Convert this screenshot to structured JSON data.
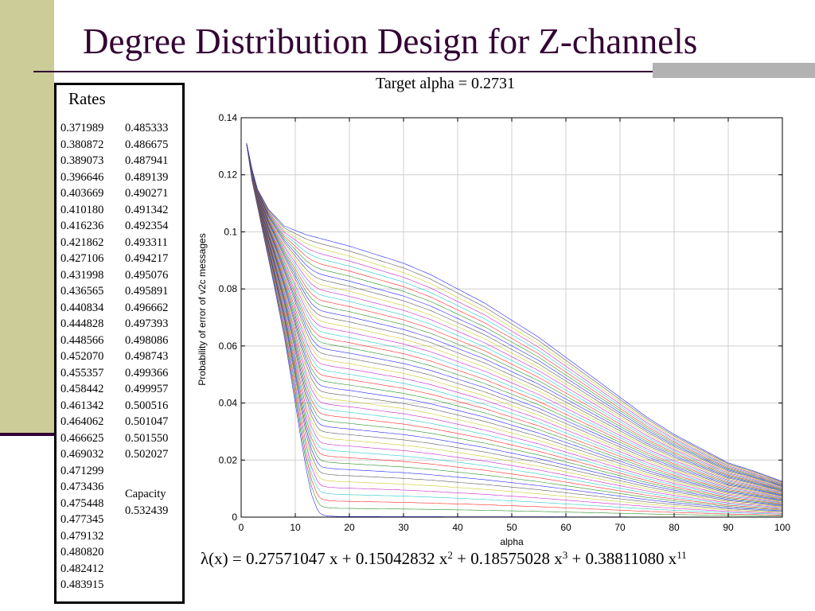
{
  "slide": {
    "title": "Degree Distribution Design for Z-channels",
    "formula": {
      "lhs": "λ(x) = ",
      "terms": [
        {
          "coef": "0.27571047",
          "var": " x",
          "exp": "",
          "op": " +  "
        },
        {
          "coef": "0.15042832",
          "var": " x",
          "exp": "2",
          "op": " +  "
        },
        {
          "coef": "0.18575028",
          "var": " x",
          "exp": "3",
          "op": " + "
        },
        {
          "coef": "0.38811080",
          "var": " x",
          "exp": "11",
          "op": ""
        }
      ]
    }
  },
  "rates": {
    "title": "Rates",
    "col1": [
      "0.371989",
      "0.380872",
      "0.389073",
      "0.396646",
      "0.403669",
      "0.410180",
      "0.416236",
      "0.421862",
      "0.427106",
      "0.431998",
      "0.436565",
      "0.440834",
      "0.444828",
      "0.448566",
      "0.452070",
      "0.455357",
      "0.458442",
      "0.461342",
      "0.464062",
      "0.466625",
      "0.469032",
      "0.471299",
      "0.473436",
      "0.475448",
      "0.477345",
      "0.479132",
      "0.480820",
      "0.482412",
      "0.483915"
    ],
    "col2": [
      "0.485333",
      "0.486675",
      "0.487941",
      "0.489139",
      "0.490271",
      "0.491342",
      "0.492354",
      "0.493311",
      "0.494217",
      "0.495076",
      "0.495891",
      "0.496662",
      "0.497393",
      "0.498086",
      "0.498743",
      "0.499366",
      "0.499957",
      "0.500516",
      "0.501047",
      "0.501550",
      "0.502027"
    ],
    "capacity_label": "Capacity",
    "capacity_value": "0.532439"
  },
  "chart_data": {
    "type": "line",
    "title": "Target alpha = 0.2731",
    "xlabel": "alpha",
    "ylabel": "Probability of error of v2c messages",
    "xlim": [
      0,
      100
    ],
    "ylim": [
      0,
      0.14
    ],
    "xticks": [
      0,
      10,
      20,
      30,
      40,
      50,
      60,
      70,
      80,
      90,
      100
    ],
    "yticks": [
      0,
      0.02,
      0.04,
      0.06,
      0.08,
      0.1,
      0.12,
      0.14
    ],
    "ytick_labels": [
      "0",
      "0.02",
      "0.04",
      "0.06",
      "0.08",
      "0.1",
      "0.12",
      "0.14"
    ],
    "grid": true,
    "series_count": 50,
    "series_colors": [
      "#0000ff",
      "#008000",
      "#ff0000",
      "#00bfbf",
      "#bf00bf",
      "#bfbf00",
      "#404040"
    ],
    "start_point": [
      1,
      0.131
    ],
    "innermost_curve": {
      "x": [
        1,
        2,
        4,
        6,
        8,
        10,
        11,
        12,
        13,
        14,
        14.5,
        15,
        16,
        18,
        100
      ],
      "y": [
        0.131,
        0.118,
        0.1,
        0.082,
        0.063,
        0.04,
        0.028,
        0.017,
        0.008,
        0.003,
        0.0015,
        0.0008,
        0.0004,
        0.0002,
        0
      ]
    },
    "outermost_curve": {
      "x": [
        1,
        2,
        3,
        5,
        8,
        12,
        16,
        20,
        25,
        30,
        35,
        40,
        45,
        50,
        55,
        60,
        65,
        70,
        75,
        80,
        85,
        90,
        95,
        100
      ],
      "y": [
        0.131,
        0.122,
        0.115,
        0.108,
        0.102,
        0.099,
        0.097,
        0.095,
        0.092,
        0.089,
        0.085,
        0.08,
        0.075,
        0.069,
        0.063,
        0.056,
        0.049,
        0.042,
        0.035,
        0.029,
        0.024,
        0.019,
        0.016,
        0.0125
      ]
    }
  }
}
